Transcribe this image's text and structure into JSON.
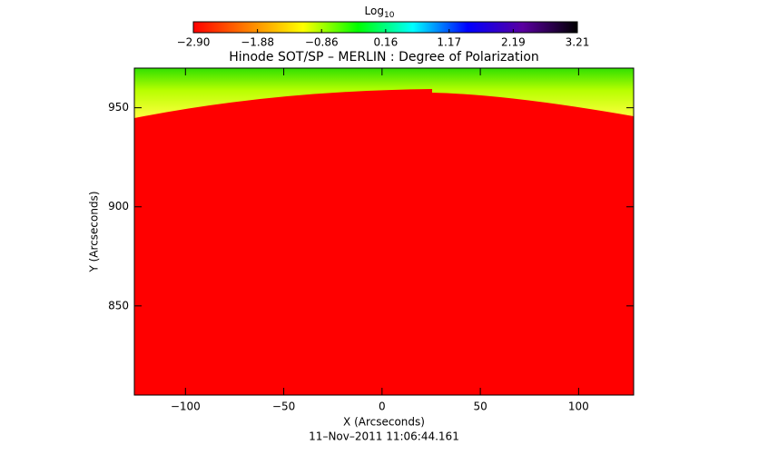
{
  "chart_data": {
    "type": "image",
    "title": "Hinode SOT/SP – MERLIN : Degree of Polarization",
    "colorbar": {
      "title": "Log",
      "title_subscript": "10",
      "clim": [
        -2.9,
        3.21
      ],
      "colors": [
        "#ff0000",
        "#ff8000",
        "#ffff00",
        "#00ff00",
        "#00ffff",
        "#0000ff",
        "#5a00a0",
        "#000000"
      ],
      "ticks": [
        {
          "value": -2.9,
          "label": "−2.90"
        },
        {
          "value": -1.88,
          "label": "−1.88"
        },
        {
          "value": -0.86,
          "label": "−0.86"
        },
        0.16,
        1.17,
        2.19,
        3.21
      ]
    },
    "xlabel": "X (Arcseconds)",
    "ylabel": "Y (Arcseconds)",
    "xlim": [
      -126,
      128
    ],
    "ylim": [
      805,
      970
    ],
    "xticks": [
      {
        "value": -100,
        "label": "−100"
      },
      {
        "value": -50,
        "label": "−50"
      },
      0,
      50,
      100
    ],
    "yticks": [
      850,
      900,
      950
    ],
    "footer": "11–Nov–2011 11:06:44.161"
  }
}
